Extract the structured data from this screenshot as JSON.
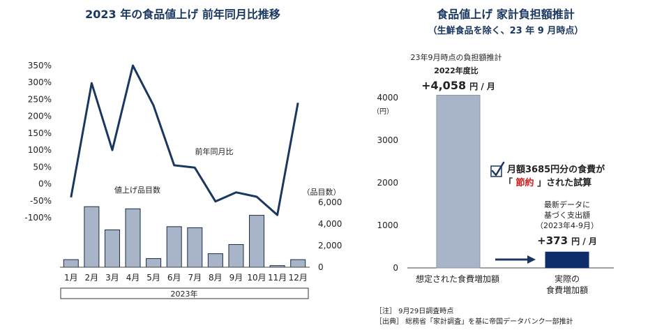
{
  "colors": {
    "navy": "#1a3760",
    "bar_gray": "#a8b4c8",
    "bar_navy": "#0f2d6b",
    "text": "#222222",
    "red": "#d11a1a"
  },
  "left_title": "2023 年の食品値上げ  前年同月比推移",
  "right_title": "食品値上げ  家計負担額推計",
  "right_subtitle": "（生鮮食品を除く、23 年 9 月時点）",
  "chart_data": [
    {
      "type": "line",
      "title": "2023 年の食品値上げ  前年同月比推移",
      "series": [
        {
          "name": "前年同月比",
          "values": [
            -40,
            298,
            100,
            350,
            232,
            55,
            48,
            -52,
            -25,
            -38,
            -92,
            240
          ]
        }
      ],
      "categories": [
        "1月",
        "2月",
        "3月",
        "4月",
        "5月",
        "6月",
        "7月",
        "8月",
        "9月",
        "10月",
        "11月",
        "12月"
      ],
      "xlabel": "2023年",
      "ylim": [
        -100,
        350
      ],
      "yticks": [
        "350%",
        "300%",
        "250%",
        "200%",
        "150%",
        "100%",
        "50%",
        "0%",
        "-50%",
        "-100%"
      ]
    },
    {
      "type": "bar",
      "series": [
        {
          "name": "値上げ品目数",
          "values": [
            700,
            5600,
            3450,
            5400,
            800,
            3750,
            3650,
            1250,
            2100,
            4800,
            150,
            700
          ]
        }
      ],
      "categories": [
        "1月",
        "2月",
        "3月",
        "4月",
        "5月",
        "6月",
        "7月",
        "8月",
        "9月",
        "10月",
        "11月",
        "12月"
      ],
      "y2label": "（品目数）",
      "ylim": [
        0,
        6000
      ],
      "yticks": [
        "6,000",
        "4,000",
        "2,000",
        "0"
      ]
    },
    {
      "type": "bar",
      "title": "食品値上げ  家計負担額推計",
      "categories": [
        "想定された食費増加額",
        "実際の食費増加額"
      ],
      "values": [
        4058,
        373
      ],
      "ylabel": "（円）",
      "ylim": [
        0,
        4000
      ],
      "yticks": [
        "4000",
        "3000",
        "2000",
        "1000",
        "0"
      ],
      "annotations": {
        "bar1_line1": "23年9月時点の負担額推計",
        "bar1_line2": "2022年度比",
        "bar1_value": "+4,058",
        "bar1_unit": "円 / 月",
        "bar2_line1": "最新データに",
        "bar2_line2": "基づく支出額",
        "bar2_line3": "（2023年4-9月）",
        "bar2_value": "+373",
        "bar2_unit": "円 / 月",
        "check_line1": "月額3685円分の食費が",
        "check_quote_open": "「",
        "check_red": "節約",
        "check_quote_close": "」された試算",
        "cat2_line1": "実際の",
        "cat2_line2": "食費増加額"
      }
    }
  ],
  "notes": [
    "［注］ 9月29日調査時点",
    "［出典］ 総務省「家計調査」を基に帝国データバンク一部推計"
  ]
}
